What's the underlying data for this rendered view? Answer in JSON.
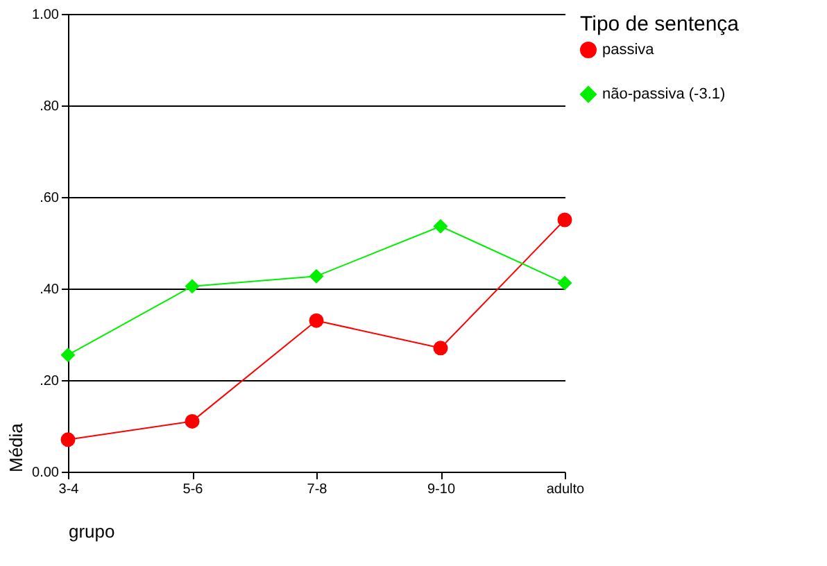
{
  "chart_data": {
    "type": "line",
    "xlabel": "grupo",
    "ylabel": "Média",
    "legend_title": "Tipo de sentença",
    "categories": [
      "3-4",
      "5-6",
      "7-8",
      "9-10",
      "adulto"
    ],
    "series": [
      {
        "name": "passiva",
        "color": "#ff0000",
        "marker": "circle",
        "values": [
          0.07,
          0.11,
          0.33,
          0.27,
          0.55
        ]
      },
      {
        "name": "não-passiva (-3.1)",
        "color": "#00ee00",
        "marker": "diamond",
        "values": [
          0.255,
          0.405,
          0.427,
          0.536,
          0.412
        ]
      }
    ],
    "ylim": [
      0,
      1
    ],
    "yticks": [
      {
        "value": 0,
        "label": "0.00"
      },
      {
        "value": 0.2,
        "label": ".20"
      },
      {
        "value": 0.4,
        "label": ".40"
      },
      {
        "value": 0.6,
        "label": ".60"
      },
      {
        "value": 0.8,
        "label": ".80"
      },
      {
        "value": 1,
        "label": "1.00"
      }
    ],
    "grid": "y",
    "legend": "right",
    "line_style": "solid"
  }
}
